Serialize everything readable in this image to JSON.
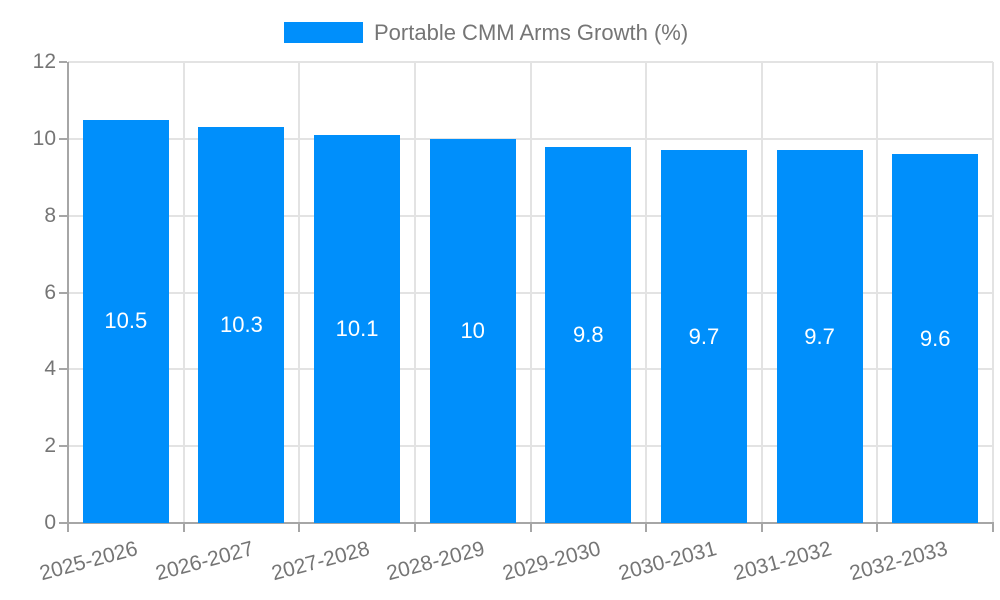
{
  "legend": {
    "label": "Portable CMM Arms Growth (%)"
  },
  "chart_data": {
    "type": "bar",
    "title": "Portable CMM Arms Growth (%)",
    "categories": [
      "2025-2026",
      "2026-2027",
      "2027-2028",
      "2028-2029",
      "2029-2030",
      "2030-2031",
      "2031-2032",
      "2032-2033"
    ],
    "values": [
      10.5,
      10.3,
      10.1,
      10,
      9.8,
      9.7,
      9.7,
      9.6
    ],
    "bar_labels": [
      "10.5",
      "10.3",
      "10.1",
      "10",
      "9.8",
      "9.7",
      "9.7",
      "9.6"
    ],
    "xlabel": "",
    "ylabel": "",
    "ylim": [
      0,
      12
    ],
    "yticks": [
      0,
      2,
      4,
      6,
      8,
      10,
      12
    ],
    "grid": true,
    "legend_position": "top-center",
    "x_label_rotation_deg": -15,
    "colors": {
      "bar": "#008FFB",
      "bar_label": "#ffffff",
      "axis_text": "#757575",
      "grid": "#e3e3e3",
      "axis_line": "#a6a6a6"
    }
  }
}
